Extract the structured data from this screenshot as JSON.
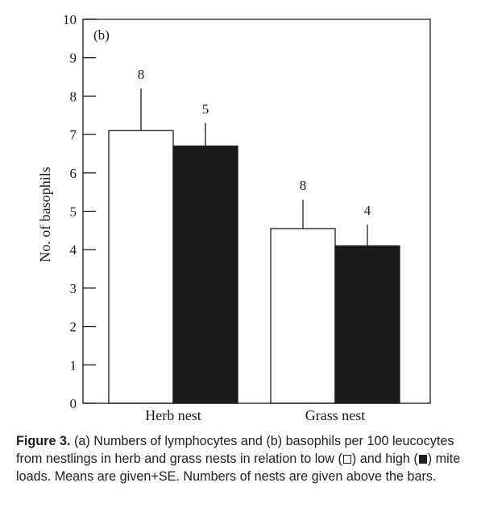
{
  "chart_data": {
    "type": "bar",
    "panel_label": "(b)",
    "categories": [
      "Herb nest",
      "Grass nest"
    ],
    "series": [
      {
        "name": "low",
        "color": "#ffffff",
        "values": [
          7.1,
          4.55
        ],
        "se": [
          1.1,
          0.75
        ],
        "n": [
          "8",
          "8"
        ]
      },
      {
        "name": "high",
        "color": "#1a1a1a",
        "values": [
          6.7,
          4.1
        ],
        "se": [
          0.6,
          0.55
        ],
        "n": [
          "5",
          "4"
        ]
      }
    ],
    "xlabel": "",
    "ylabel": "No. of basophils",
    "ylim": [
      0,
      10
    ],
    "yticks": [
      "0",
      "1",
      "2",
      "3",
      "4",
      "5",
      "6",
      "7",
      "8",
      "9",
      "10"
    ],
    "grid": false,
    "legend": "none"
  },
  "caption": {
    "label": "Figure 3.",
    "part1": "(a) Numbers of lymphocytes and (b) basophils per 100 leucocytes from nestlings in herb and grass nests in relation to low (",
    "part2": ") and high (",
    "part3": ") mite loads. Means are given+SE. Numbers of nests are given above the bars."
  }
}
